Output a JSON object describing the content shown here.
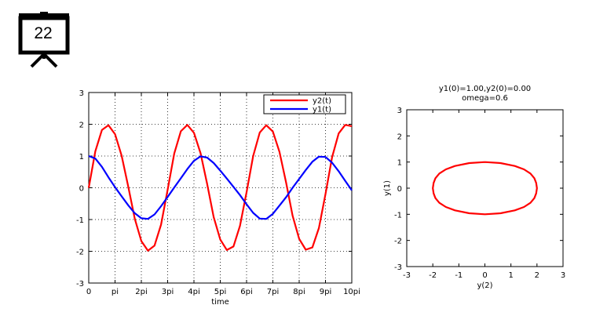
{
  "slide": {
    "number": "22",
    "icon": "presentation-board-icon"
  },
  "chart_data": [
    {
      "type": "line",
      "title": "",
      "xlabel": "time",
      "ylabel": "",
      "xlim": [
        0,
        10
      ],
      "ylim": [
        -3,
        3
      ],
      "x_unit": "pi",
      "xticks": [
        0,
        1,
        2,
        3,
        4,
        5,
        6,
        7,
        8,
        9,
        10
      ],
      "xtick_labels": [
        "0",
        "pi",
        "2pi",
        "3pi",
        "4pi",
        "5pi",
        "6pi",
        "7pi",
        "8pi",
        "9pi",
        "10pi"
      ],
      "yticks": [
        -3,
        -2,
        -1,
        0,
        1,
        2,
        3
      ],
      "ytick_labels": [
        "-3",
        "-2",
        "-1",
        "0",
        "1",
        "2",
        "3"
      ],
      "grid": true,
      "legend": "top-right",
      "series": [
        {
          "name": "y2(t)",
          "color": "#ff0000",
          "x": [
            0,
            0.25,
            0.5,
            0.75,
            1,
            1.25,
            1.5,
            1.75,
            2,
            2.25,
            2.5,
            2.75,
            3,
            3.25,
            3.5,
            3.75,
            4,
            4.25,
            4.5,
            4.75,
            5,
            5.25,
            5.5,
            5.75,
            6,
            6.25,
            6.5,
            6.75,
            7,
            7.25,
            7.5,
            7.75,
            8,
            8.25,
            8.5,
            8.75,
            9,
            9.25,
            9.5,
            9.75,
            10
          ],
          "values": [
            0,
            1.15,
            1.82,
            1.97,
            1.69,
            1.01,
            0.04,
            -0.97,
            -1.68,
            -1.98,
            -1.82,
            -1.16,
            -0.06,
            1.08,
            1.78,
            1.98,
            1.73,
            1.09,
            0.12,
            -0.92,
            -1.63,
            -1.96,
            -1.85,
            -1.2,
            -0.14,
            1.0,
            1.74,
            1.97,
            1.77,
            1.13,
            0.17,
            -0.88,
            -1.61,
            -1.95,
            -1.88,
            -1.27,
            -0.2,
            0.96,
            1.71,
            1.98,
            1.94
          ]
        },
        {
          "name": "y1(t)",
          "color": "#0000ff",
          "x": [
            0,
            0.25,
            0.5,
            0.75,
            1,
            1.25,
            1.5,
            1.75,
            2,
            2.25,
            2.5,
            2.75,
            3,
            3.25,
            3.5,
            3.75,
            4,
            4.25,
            4.5,
            4.75,
            5,
            5.25,
            5.5,
            5.75,
            6,
            6.25,
            6.5,
            6.75,
            7,
            7.25,
            7.5,
            7.75,
            8,
            8.25,
            8.5,
            8.75,
            9,
            9.25,
            9.5,
            9.75,
            10
          ],
          "values": [
            1,
            0.92,
            0.66,
            0.33,
            0.02,
            -0.27,
            -0.55,
            -0.8,
            -0.96,
            -0.98,
            -0.84,
            -0.58,
            -0.29,
            0.01,
            0.3,
            0.59,
            0.85,
            0.99,
            0.95,
            0.78,
            0.54,
            0.29,
            0.03,
            -0.23,
            -0.52,
            -0.79,
            -0.97,
            -0.98,
            -0.82,
            -0.56,
            -0.3,
            0.0,
            0.28,
            0.56,
            0.82,
            0.98,
            0.97,
            0.79,
            0.52,
            0.22,
            -0.08
          ]
        }
      ]
    },
    {
      "type": "line",
      "title": "y1(0)=1.00,y2(0)=0.00",
      "subtitle": "omega=0.6",
      "xlabel": "y(2)",
      "ylabel": "y(1)",
      "xlim": [
        -3,
        3
      ],
      "ylim": [
        -3,
        3
      ],
      "xticks": [
        -3,
        -2,
        -1,
        0,
        1,
        2,
        3
      ],
      "yticks": [
        -3,
        -2,
        -1,
        0,
        1,
        2,
        3
      ],
      "xtick_labels": [
        "-3",
        "-2",
        "-1",
        "0",
        "1",
        "2",
        "3"
      ],
      "ytick_labels": [
        "-3",
        "-2",
        "-1",
        "0",
        "1",
        "2",
        "3"
      ],
      "grid": false,
      "series": [
        {
          "color": "#ff0000",
          "x": [
            0,
            0.6,
            1.15,
            1.5,
            1.75,
            1.9,
            1.97,
            2.0,
            1.97,
            1.9,
            1.75,
            1.5,
            1.15,
            0.6,
            0,
            -0.6,
            -1.15,
            -1.5,
            -1.75,
            -1.9,
            -1.97,
            -2.0,
            -1.97,
            -1.9,
            -1.75,
            -1.5,
            -1.15,
            -0.6,
            0
          ],
          "values": [
            1.0,
            0.96,
            0.85,
            0.72,
            0.56,
            0.38,
            0.2,
            0.0,
            -0.2,
            -0.38,
            -0.56,
            -0.72,
            -0.85,
            -0.96,
            -1.0,
            -0.96,
            -0.85,
            -0.72,
            -0.56,
            -0.38,
            -0.2,
            0.0,
            0.2,
            0.38,
            0.56,
            0.72,
            0.85,
            0.96,
            1.0
          ]
        }
      ]
    }
  ]
}
